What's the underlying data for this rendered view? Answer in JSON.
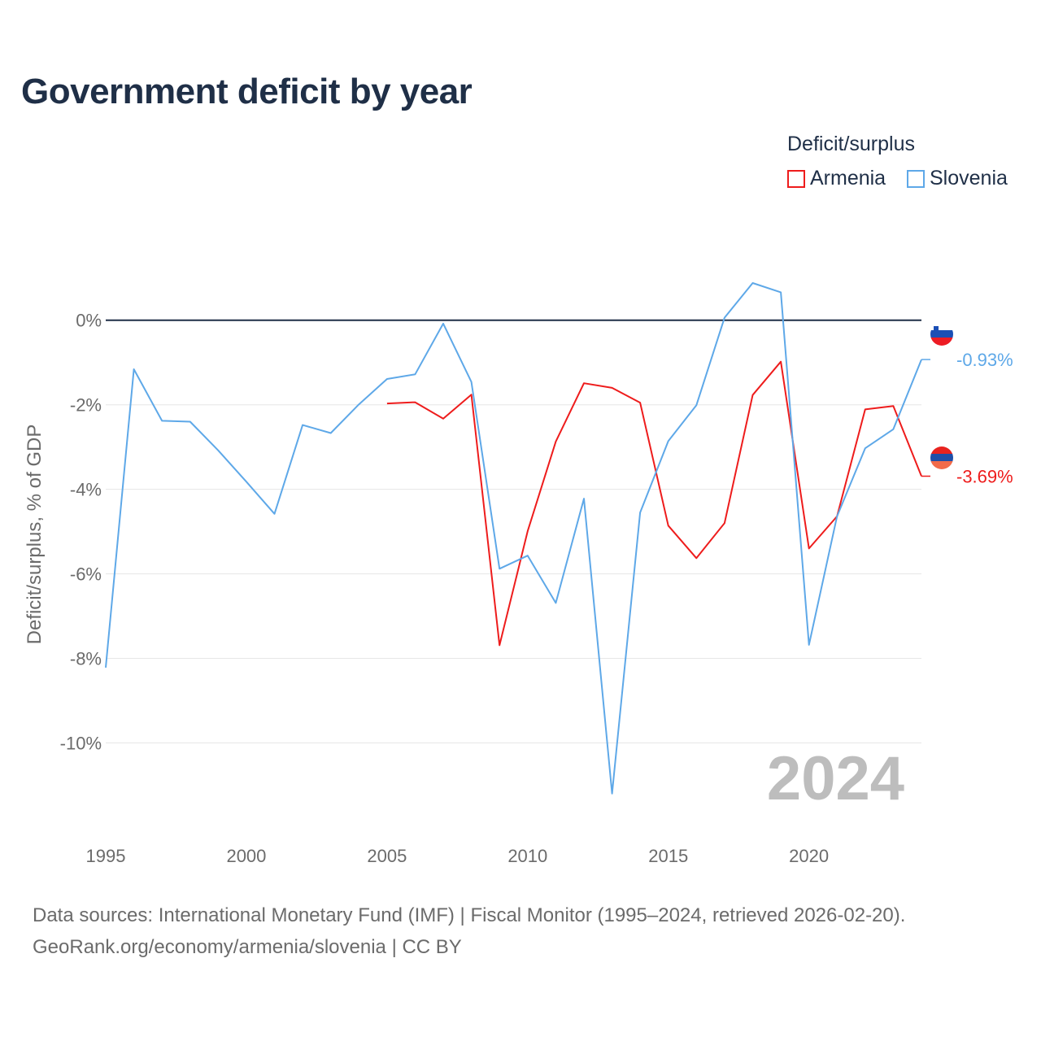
{
  "title": "Government deficit by year",
  "legend": {
    "title": "Deficit/surplus",
    "items": [
      {
        "name": "Armenia",
        "color": "#ee1c1c"
      },
      {
        "name": "Slovenia",
        "color": "#5ea8e8"
      }
    ]
  },
  "chart_data": {
    "type": "line",
    "title": "Government deficit by year",
    "ylabel": "Deficit/surplus, % of GDP",
    "xlabel": "",
    "xlim": [
      1995,
      2024
    ],
    "ylim": [
      -12.05,
      1.9
    ],
    "x_ticks": [
      1995,
      2000,
      2005,
      2010,
      2015,
      2020
    ],
    "y_ticks": [
      0,
      -2,
      -4,
      -6,
      -8,
      -10
    ],
    "y_tick_labels": [
      "0%",
      "-2%",
      "-4%",
      "-6%",
      "-8%",
      "-10%"
    ],
    "grid": true,
    "year_watermark": "2024",
    "series": [
      {
        "name": "Armenia",
        "color": "#ee1c1c",
        "end_label": "-3.69%",
        "x": [
          2005,
          2006,
          2007,
          2008,
          2009,
          2010,
          2011,
          2012,
          2013,
          2014,
          2015,
          2016,
          2017,
          2018,
          2019,
          2020,
          2021,
          2022,
          2023,
          2024
        ],
        "values": [
          -1.97,
          -1.94,
          -2.33,
          -1.76,
          -7.69,
          -4.99,
          -2.87,
          -1.49,
          -1.6,
          -1.95,
          -4.86,
          -5.63,
          -4.8,
          -1.77,
          -0.98,
          -5.4,
          -4.64,
          -2.11,
          -2.03,
          -3.69
        ]
      },
      {
        "name": "Slovenia",
        "color": "#5ea8e8",
        "end_label": "-0.93%",
        "x": [
          1995,
          1996,
          1997,
          1998,
          1999,
          2000,
          2001,
          2002,
          2003,
          2004,
          2005,
          2006,
          2007,
          2008,
          2009,
          2010,
          2011,
          2012,
          2013,
          2014,
          2015,
          2016,
          2017,
          2018,
          2019,
          2020,
          2021,
          2022,
          2023,
          2024
        ],
        "values": [
          -8.22,
          -1.16,
          -2.38,
          -2.4,
          -3.08,
          -3.82,
          -4.58,
          -2.48,
          -2.67,
          -1.99,
          -1.39,
          -1.28,
          -0.08,
          -1.46,
          -5.88,
          -5.57,
          -6.69,
          -4.22,
          -11.2,
          -4.55,
          -2.86,
          -2.01,
          0.06,
          0.88,
          0.66,
          -7.68,
          -4.64,
          -3.03,
          -2.58,
          -0.93
        ]
      }
    ]
  },
  "footer": {
    "line1": "Data sources: International Monetary Fund (IMF) | Fiscal Monitor (1995–2024, retrieved 2026-02-20).",
    "line2": "GeoRank.org/economy/armenia/slovenia | CC BY"
  }
}
